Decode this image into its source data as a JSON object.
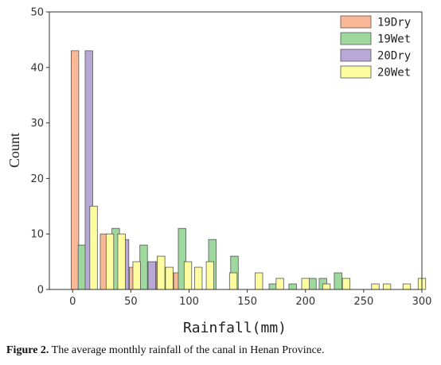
{
  "chart_data": {
    "type": "bar",
    "xlabel": "Rainfall(mm)",
    "ylabel": "Count",
    "xlim": [
      -20,
      300
    ],
    "ylim": [
      0,
      50
    ],
    "x_ticks": [
      0,
      50,
      100,
      150,
      200,
      250,
      300
    ],
    "y_ticks": [
      0,
      10,
      20,
      30,
      40,
      50
    ],
    "grid": false,
    "legend_position": "top-right",
    "colors": {
      "19Dry": "#f9b996",
      "19Wet": "#9fd89f",
      "20Dry": "#b7a8d6",
      "20Wet": "#fdfd9f",
      "outline": "#555555"
    },
    "series": [
      {
        "name": "19Dry",
        "points": [
          [
            2,
            43
          ],
          [
            27,
            10
          ],
          [
            52,
            4
          ],
          [
            75,
            5
          ],
          [
            90,
            3
          ]
        ]
      },
      {
        "name": "19Wet",
        "points": [
          [
            8,
            8
          ],
          [
            37,
            11
          ],
          [
            61,
            8
          ],
          [
            94,
            11
          ],
          [
            120,
            9
          ],
          [
            139,
            6
          ],
          [
            172,
            1
          ],
          [
            189,
            1
          ],
          [
            206,
            2
          ],
          [
            215,
            2
          ],
          [
            228,
            3
          ]
        ]
      },
      {
        "name": "20Dry",
        "points": [
          [
            14,
            43
          ],
          [
            45,
            9
          ],
          [
            68,
            5
          ],
          [
            82,
            3
          ]
        ]
      },
      {
        "name": "20Wet",
        "points": [
          [
            18,
            15
          ],
          [
            32,
            10
          ],
          [
            42,
            10
          ],
          [
            55,
            5
          ],
          [
            76,
            6
          ],
          [
            83,
            4
          ],
          [
            99,
            5
          ],
          [
            108,
            4
          ],
          [
            118,
            5
          ],
          [
            138,
            3
          ],
          [
            160,
            3
          ],
          [
            178,
            2
          ],
          [
            200,
            2
          ],
          [
            218,
            1
          ],
          [
            235,
            2
          ],
          [
            260,
            1
          ],
          [
            270,
            1
          ],
          [
            287,
            1
          ],
          [
            300,
            2
          ]
        ]
      }
    ]
  },
  "caption": {
    "label": "Figure 2.",
    "text": " The average monthly rainfall of the canal in Henan Province."
  }
}
